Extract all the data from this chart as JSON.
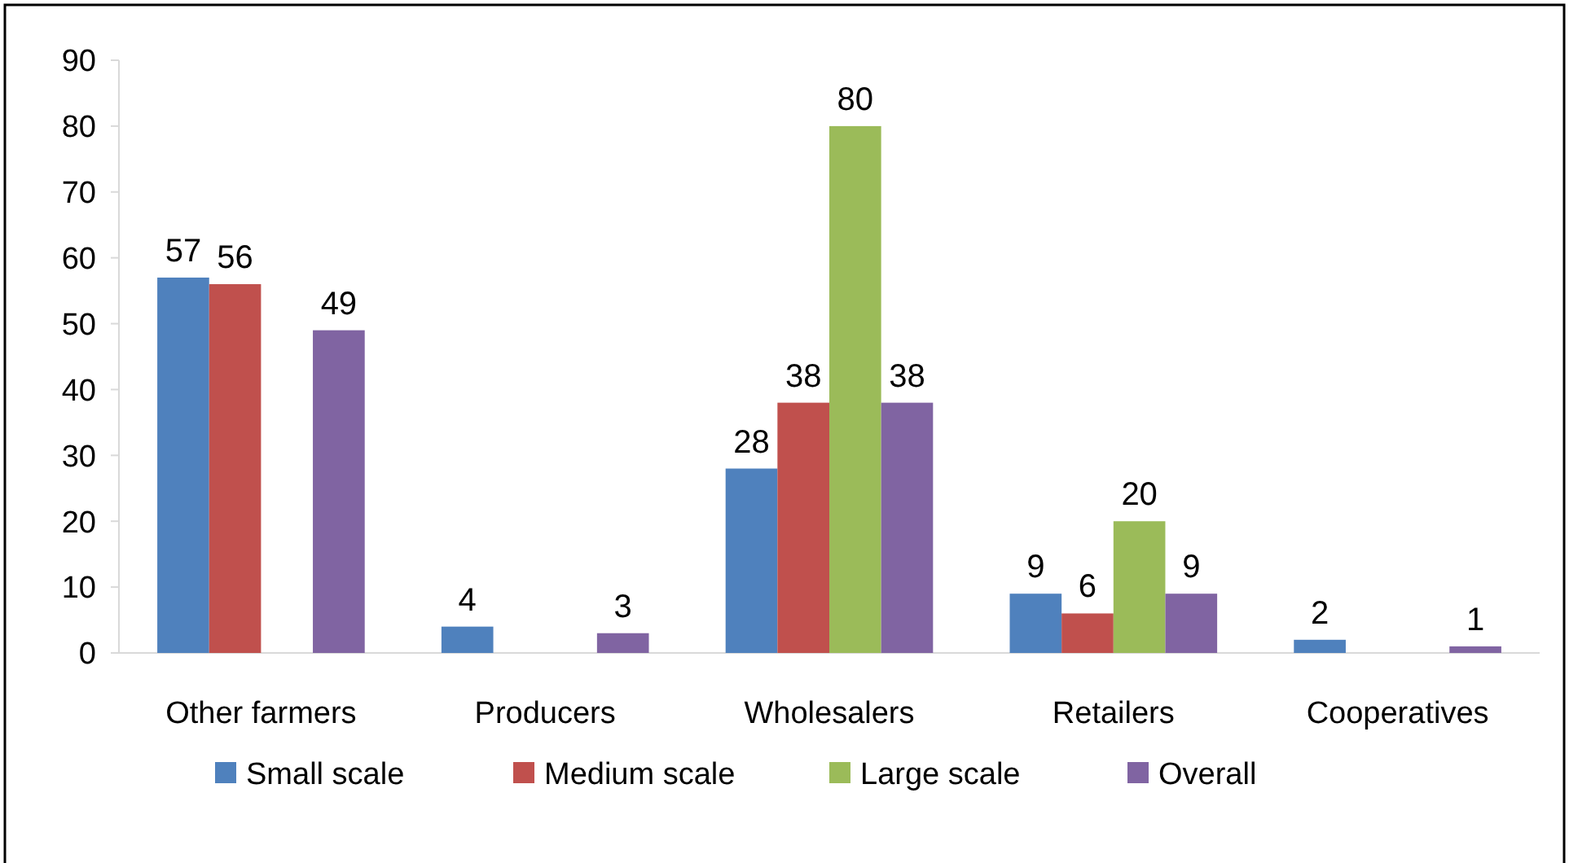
{
  "chart_data": {
    "type": "bar",
    "categories": [
      "Other farmers",
      "Producers",
      "Wholesalers",
      "Retailers",
      "Cooperatives"
    ],
    "series": [
      {
        "name": "Small scale",
        "color": "#4f81bd",
        "values": [
          57,
          4,
          28,
          9,
          2
        ]
      },
      {
        "name": "Medium scale",
        "color": "#c0504d",
        "values": [
          56,
          null,
          38,
          6,
          null
        ]
      },
      {
        "name": "Large scale",
        "color": "#9bbb59",
        "values": [
          null,
          null,
          80,
          20,
          null
        ]
      },
      {
        "name": "Overall",
        "color": "#8064a2",
        "values": [
          49,
          3,
          38,
          9,
          1
        ]
      }
    ],
    "ylim": [
      0,
      90
    ],
    "yticks": [
      0,
      10,
      20,
      30,
      40,
      50,
      60,
      70,
      80,
      90
    ],
    "grid": false,
    "legend": "bottom",
    "data_labels": true
  }
}
